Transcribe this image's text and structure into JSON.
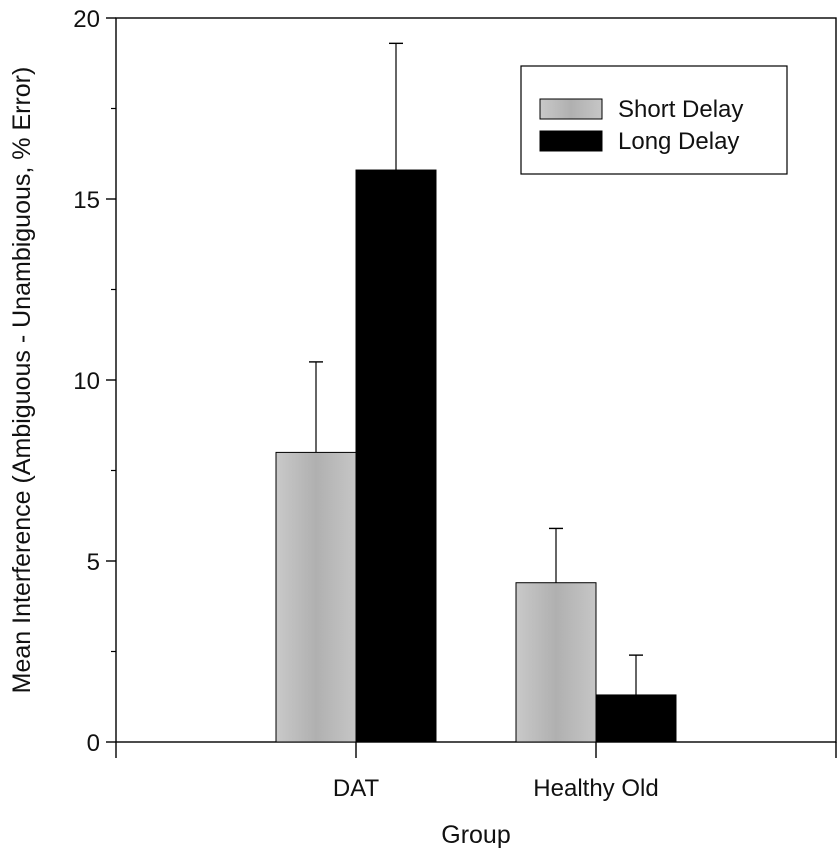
{
  "chart_data": {
    "type": "bar",
    "title": "",
    "xlabel": "Group",
    "ylabel": "Mean Interference (Ambiguous - Unambiguous, % Error)",
    "categories": [
      "DAT",
      "Healthy Old"
    ],
    "ylim": [
      0,
      20
    ],
    "yticks": [
      0,
      5,
      10,
      15,
      20
    ],
    "grid": false,
    "legend_position": "top-right",
    "series": [
      {
        "name": "Short Delay",
        "values": [
          8.0,
          4.4
        ],
        "error": [
          2.5,
          1.5
        ],
        "color": "#b8b8b8"
      },
      {
        "name": "Long Delay",
        "values": [
          15.8,
          1.3
        ],
        "error": [
          3.5,
          1.1
        ],
        "color": "#000000"
      }
    ]
  }
}
